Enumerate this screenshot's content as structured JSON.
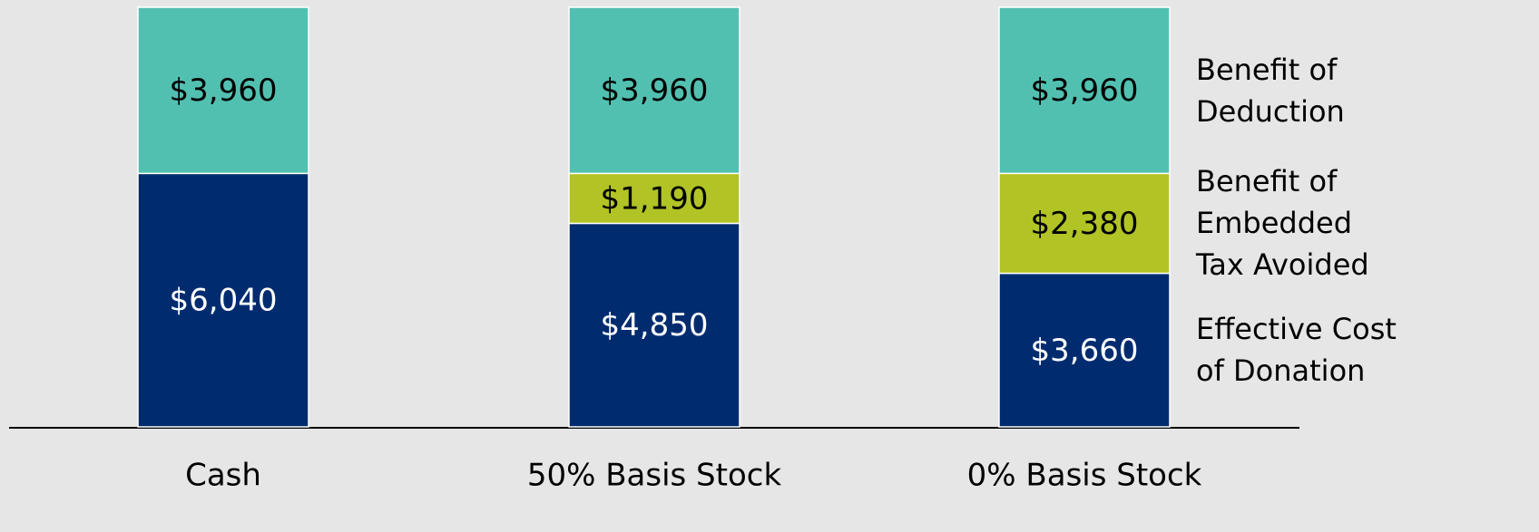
{
  "chart_data": {
    "type": "stacked_bar",
    "categories": [
      "Cash",
      "50% Basis Stock",
      "0% Basis Stock"
    ],
    "series": [
      {
        "name": "Effective Cost of Donation",
        "color": "#002c6f",
        "label_color": "#ffffff",
        "values": [
          6040,
          4850,
          3660
        ],
        "value_labels": [
          "$6,040",
          "$4,850",
          "$3,660"
        ]
      },
      {
        "name": "Benefit of Embedded Tax Avoided",
        "color": "#b2c326",
        "label_color": "#000000",
        "values": [
          null,
          1190,
          2380
        ],
        "value_labels": [
          null,
          "$1,190",
          "$2,380"
        ]
      },
      {
        "name": "Benefit of Deduction",
        "color": "#52c0b1",
        "label_color": "#000000",
        "values": [
          3960,
          3960,
          3960
        ],
        "value_labels": [
          "$3,960",
          "$3,960",
          "$3,960"
        ]
      }
    ],
    "ylim": [
      0,
      10000
    ]
  }
}
